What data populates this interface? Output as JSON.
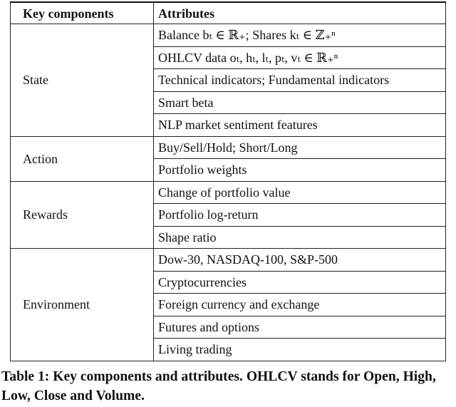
{
  "table": {
    "header": [
      "Key components",
      "Attributes"
    ],
    "groups": [
      {
        "component": "State",
        "attributes": [
          "Balance bₜ ∈ ℝ₊; Shares kₜ ∈ ℤ₊ⁿ",
          "OHLCV data oₜ, hₜ, lₜ, pₜ, vₜ ∈ ℝ₊ⁿ",
          "Technical indicators; Fundamental indicators",
          "Smart beta",
          "NLP market sentiment features"
        ]
      },
      {
        "component": "Action",
        "attributes": [
          "Buy/Sell/Hold; Short/Long",
          "Portfolio weights"
        ]
      },
      {
        "component": "Rewards",
        "attributes": [
          "Change of portfolio value",
          "Portfolio log-return",
          "Shape ratio"
        ]
      },
      {
        "component": "Environment",
        "attributes": [
          "Dow-30, NASDAQ-100, S&P-500",
          "Cryptocurrencies",
          "Foreign currency and exchange",
          "Futures and options",
          "Living trading"
        ]
      }
    ]
  },
  "caption": "Table 1: Key components and attributes. OHLCV stands for Open, High, Low, Close and Volume."
}
